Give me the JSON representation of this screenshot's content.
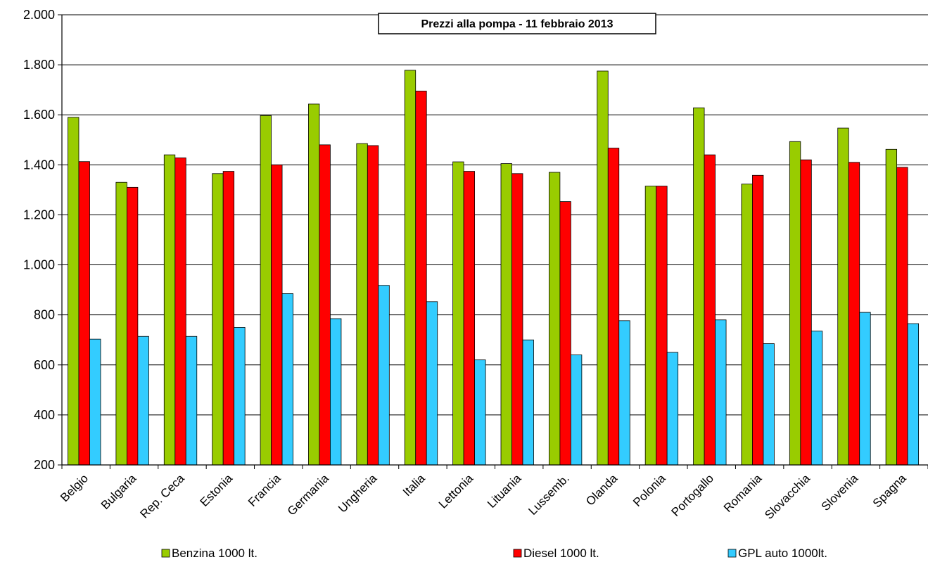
{
  "chart_data": {
    "type": "bar",
    "title": "Prezzi  alla pompa - 11 febbraio 2013",
    "xlabel": "",
    "ylabel": "",
    "ylim": [
      200,
      2000
    ],
    "ytick_step": 200,
    "ytick_labels": [
      "200",
      "400",
      "600",
      "800",
      "1.000",
      "1.200",
      "1.400",
      "1.600",
      "1.800",
      "2.000"
    ],
    "grid": true,
    "legend_position": "bottom",
    "categories": [
      "Belgio",
      "Bulgaria",
      "Rep. Ceca",
      "Estonia",
      "Francia",
      "Germania",
      "Ungheria",
      "Italia",
      "Lettonia",
      "Lituania",
      "Lussemb.",
      "Olanda",
      "Polonia",
      "Portogallo",
      "Romania",
      "Slovacchia",
      "Slovenia",
      "Spagna"
    ],
    "series": [
      {
        "name": "Benzina 1000 lt.",
        "color": "#99cc00",
        "values": [
          1590,
          1330,
          1440,
          1365,
          1597,
          1643,
          1485,
          1778,
          1412,
          1405,
          1370,
          1775,
          1315,
          1628,
          1323,
          1493,
          1547,
          1462
        ]
      },
      {
        "name": "Diesel 1000 lt.",
        "color": "#ff0000",
        "values": [
          1413,
          1310,
          1428,
          1374,
          1400,
          1480,
          1477,
          1695,
          1374,
          1365,
          1253,
          1467,
          1315,
          1440,
          1358,
          1420,
          1410,
          1390
        ]
      },
      {
        "name": "GPL auto 1000lt.",
        "color": "#33ccff",
        "values": [
          703,
          714,
          714,
          750,
          885,
          785,
          918,
          853,
          620,
          700,
          640,
          777,
          650,
          780,
          685,
          735,
          810,
          765
        ]
      }
    ]
  }
}
